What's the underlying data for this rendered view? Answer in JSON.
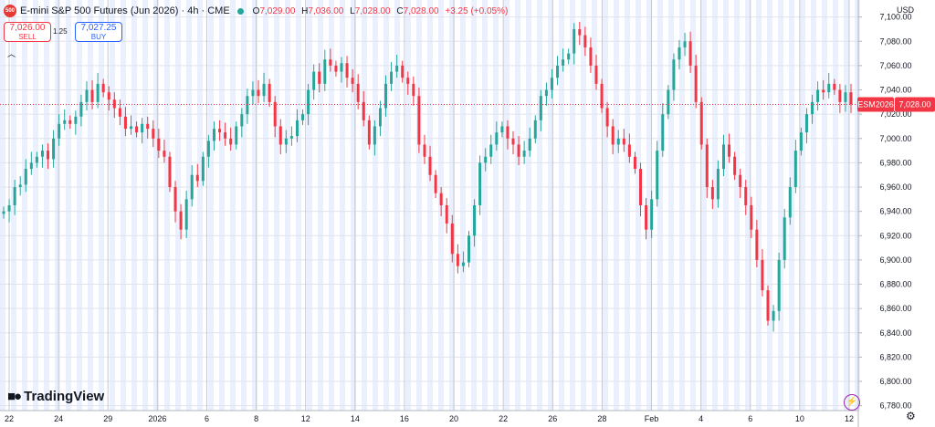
{
  "header": {
    "logo_text": "500",
    "title": "E-mini S&P 500 Futures (Jun 2026) · 4h · CME",
    "ohlc": {
      "o_label": "O",
      "o": "7,029.00",
      "h_label": "H",
      "h": "7,036.00",
      "l_label": "L",
      "l": "7,028.00",
      "c_label": "C",
      "c": "7,028.00",
      "change": "+3.25 (+0.05%)"
    }
  },
  "trade": {
    "sell_price": "7,026.00",
    "sell_label": "SELL",
    "spread": "1.25",
    "buy_price": "7,027.25",
    "buy_label": "BUY",
    "caret": "︿"
  },
  "watermark": "TradingView",
  "currency": "USD",
  "colors": {
    "up": "#26a69a",
    "down": "#f23645",
    "band": "#eaf0fe",
    "grid": "#e0e3eb",
    "text": "#131722",
    "tag": "#f23645"
  },
  "chart_data": {
    "type": "candlestick",
    "instrument": "ESM2026",
    "last_price": 7028,
    "last_price_label": "7,028.00",
    "price_ticks": [
      7100,
      7080,
      7060,
      7040,
      7020,
      7000,
      6980,
      6960,
      6940,
      6920,
      6900,
      6880,
      6860,
      6840,
      6820,
      6800,
      6780
    ],
    "price_tick_labels": [
      "7,100.00",
      "7,080.00",
      "7,060.00",
      "7,040.00",
      "7,020.00",
      "7,000.00",
      "6,980.00",
      "6,960.00",
      "6,940.00",
      "6,920.00",
      "6,900.00",
      "6,880.00",
      "6,860.00",
      "6,840.00",
      "6,820.00",
      "6,800.00",
      "6,780.00"
    ],
    "ylim": [
      6776,
      7114
    ],
    "time_ticks": [
      "22",
      "24",
      "29",
      "2026",
      "6",
      "8",
      "12",
      "14",
      "16",
      "20",
      "22",
      "26",
      "28",
      "Feb",
      "4",
      "6",
      "10",
      "12"
    ],
    "close_path": [
      6940,
      6945,
      6960,
      6962,
      6975,
      6980,
      6985,
      6990,
      6983,
      7000,
      7012,
      7015,
      7012,
      7018,
      7030,
      7040,
      7030,
      7045,
      7038,
      7032,
      7025,
      7018,
      7008,
      7010,
      7005,
      7012,
      7008,
      7000,
      6990,
      6985,
      6960,
      6940,
      6925,
      6950,
      6970,
      6965,
      6985,
      6998,
      7008,
      7005,
      7000,
      6995,
      7010,
      7020,
      7035,
      7040,
      7035,
      7045,
      7030,
      7010,
      6995,
      7000,
      7002,
      7015,
      7020,
      7040,
      7055,
      7045,
      7065,
      7060,
      7055,
      7062,
      7050,
      7045,
      7030,
      7015,
      6995,
      7010,
      7025,
      7045,
      7055,
      7060,
      7050,
      7045,
      7035,
      6995,
      6985,
      6970,
      6955,
      6945,
      6930,
      6905,
      6895,
      6898,
      6920,
      6945,
      6980,
      6985,
      6995,
      7005,
      7010,
      7000,
      6995,
      6985,
      6990,
      7000,
      7015,
      7035,
      7040,
      7050,
      7060,
      7065,
      7070,
      7090,
      7085,
      7075,
      7060,
      7045,
      7025,
      7010,
      6995,
      7000,
      6995,
      6985,
      6975,
      6945,
      6925,
      6950,
      6990,
      7020,
      7040,
      7065,
      7075,
      7080,
      7060,
      7030,
      6995,
      6960,
      6950,
      6975,
      6995,
      6985,
      6970,
      6960,
      6945,
      6925,
      6900,
      6875,
      6850,
      6858,
      6900,
      6935,
      6960,
      6990,
      7005,
      7020,
      7030,
      7040,
      7038,
      7045,
      7040,
      7030,
      7038,
      7028
    ]
  }
}
